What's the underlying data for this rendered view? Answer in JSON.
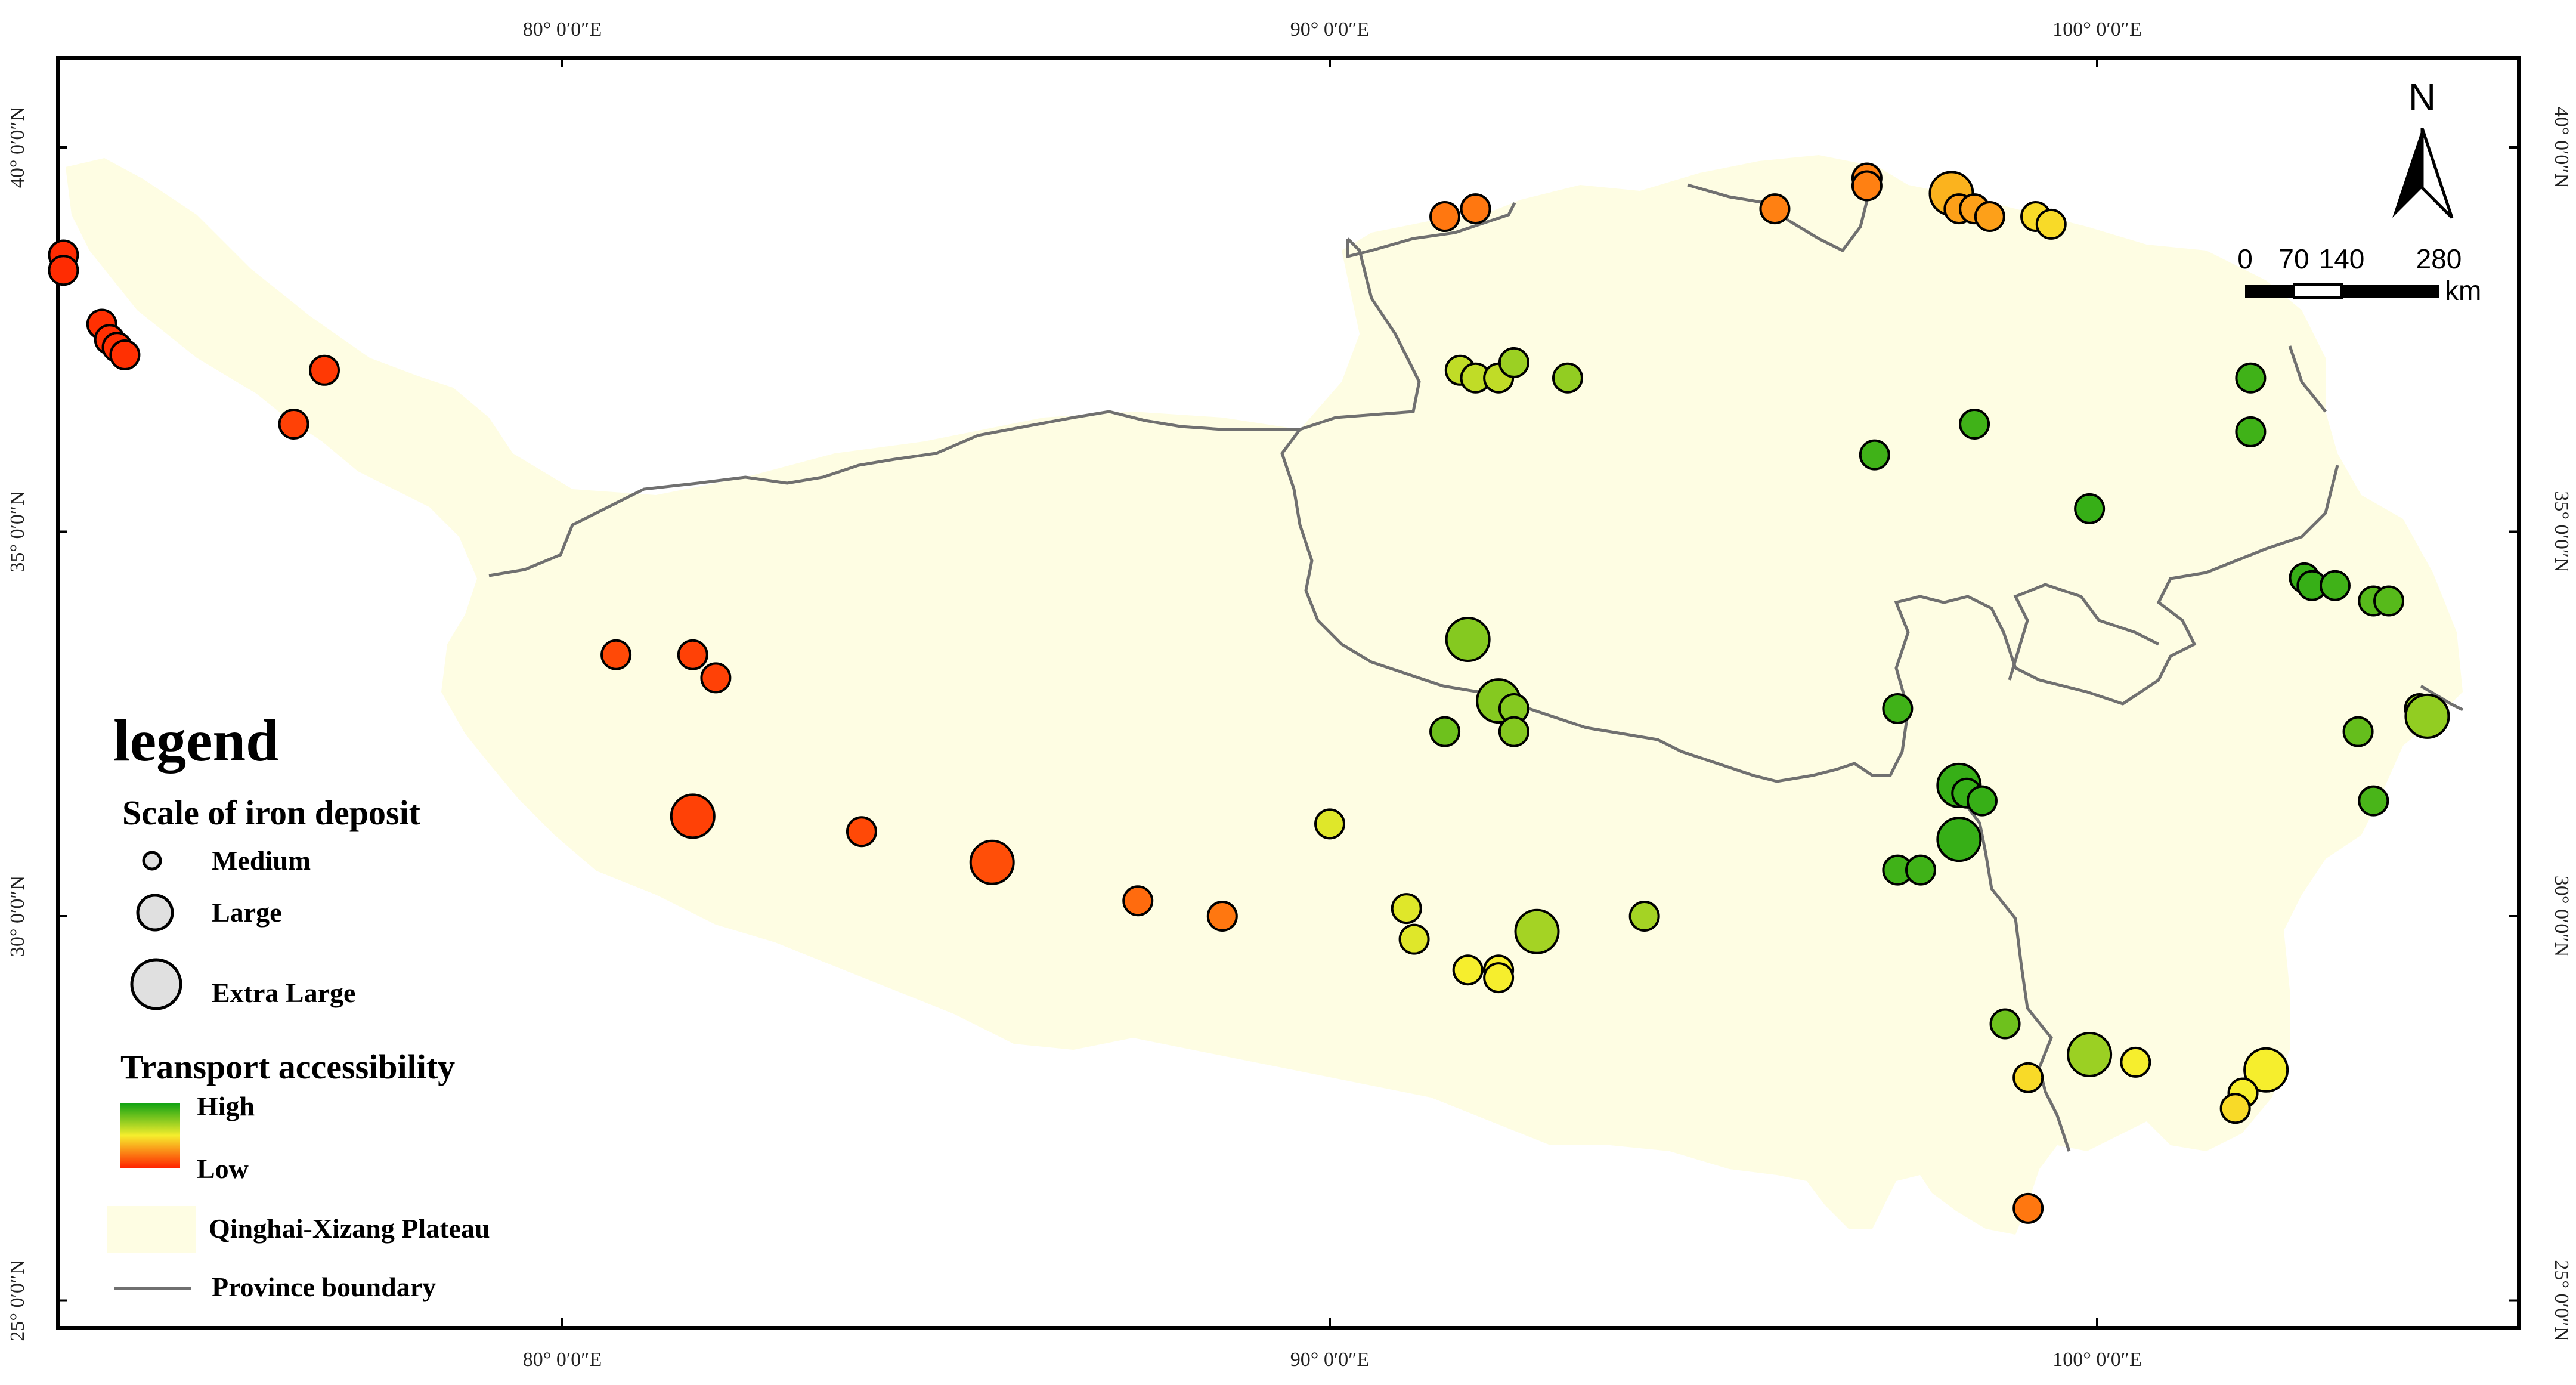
{
  "map": {
    "lon_ticks": [
      "80° 0′0″E",
      "90° 0′0″E",
      "100° 0′0″E"
    ],
    "lat_ticks": [
      "40° 0′0″N",
      "35° 0′0″N",
      "30° 0′0″N",
      "25° 0′0″N"
    ],
    "north_label": "N",
    "scale_bar": {
      "labels": [
        "0",
        "70",
        "140",
        "280"
      ],
      "unit": "km"
    },
    "colors": {
      "plateau": "#fefde3",
      "boundary": "#707070",
      "frame": "#000000",
      "high": "#13a313",
      "mid": "#f6ee2d",
      "low": "#ff2400"
    }
  },
  "legend": {
    "title": "legend",
    "scale_title": "Scale of iron deposit",
    "sizes": [
      "Medium",
      "Large",
      "Extra Large"
    ],
    "transport_title": "Transport accessibility",
    "high_label": "High",
    "low_label": "Low",
    "plateau_label": "Qinghai-Xizang Plateau",
    "boundary_label": "Province boundary"
  },
  "deposits": [
    {
      "lon": 73.5,
      "lat": 38.6,
      "size": "Large",
      "access": 0.02
    },
    {
      "lon": 73.5,
      "lat": 38.4,
      "size": "Large",
      "access": 0.02
    },
    {
      "lon": 74.0,
      "lat": 37.7,
      "size": "Large",
      "access": 0.03
    },
    {
      "lon": 74.1,
      "lat": 37.5,
      "size": "Large",
      "access": 0.03
    },
    {
      "lon": 74.2,
      "lat": 37.4,
      "size": "Large",
      "access": 0.03
    },
    {
      "lon": 74.3,
      "lat": 37.3,
      "size": "Large",
      "access": 0.03
    },
    {
      "lon": 76.9,
      "lat": 37.1,
      "size": "Large",
      "access": 0.05
    },
    {
      "lon": 76.5,
      "lat": 36.4,
      "size": "Large",
      "access": 0.07
    },
    {
      "lon": 80.7,
      "lat": 33.4,
      "size": "Large",
      "access": 0.09
    },
    {
      "lon": 81.7,
      "lat": 33.4,
      "size": "Large",
      "access": 0.07
    },
    {
      "lon": 82.0,
      "lat": 33.1,
      "size": "Large",
      "access": 0.07
    },
    {
      "lon": 81.7,
      "lat": 31.3,
      "size": "Extra Large",
      "access": 0.07
    },
    {
      "lon": 83.9,
      "lat": 31.1,
      "size": "Large",
      "access": 0.09
    },
    {
      "lon": 85.6,
      "lat": 30.7,
      "size": "Extra Large",
      "access": 0.1
    },
    {
      "lon": 87.5,
      "lat": 30.2,
      "size": "Large",
      "access": 0.17
    },
    {
      "lon": 88.6,
      "lat": 30.0,
      "size": "Large",
      "access": 0.2
    },
    {
      "lon": 91.5,
      "lat": 39.1,
      "size": "Large",
      "access": 0.2
    },
    {
      "lon": 91.9,
      "lat": 39.2,
      "size": "Large",
      "access": 0.2
    },
    {
      "lon": 95.8,
      "lat": 39.2,
      "size": "Large",
      "access": 0.22
    },
    {
      "lon": 97.0,
      "lat": 39.6,
      "size": "Large",
      "access": 0.22
    },
    {
      "lon": 97.0,
      "lat": 39.5,
      "size": "Large",
      "access": 0.22
    },
    {
      "lon": 98.1,
      "lat": 39.4,
      "size": "Extra Large",
      "access": 0.35
    },
    {
      "lon": 98.2,
      "lat": 39.2,
      "size": "Large",
      "access": 0.3
    },
    {
      "lon": 98.4,
      "lat": 39.2,
      "size": "Large",
      "access": 0.3
    },
    {
      "lon": 98.6,
      "lat": 39.1,
      "size": "Large",
      "access": 0.3
    },
    {
      "lon": 99.2,
      "lat": 39.1,
      "size": "Large",
      "access": 0.45
    },
    {
      "lon": 99.4,
      "lat": 39.0,
      "size": "Large",
      "access": 0.45
    },
    {
      "lon": 91.7,
      "lat": 37.1,
      "size": "Large",
      "access": 0.62
    },
    {
      "lon": 91.9,
      "lat": 37.0,
      "size": "Large",
      "access": 0.62
    },
    {
      "lon": 92.2,
      "lat": 37.0,
      "size": "Large",
      "access": 0.62
    },
    {
      "lon": 92.4,
      "lat": 37.2,
      "size": "Large",
      "access": 0.7
    },
    {
      "lon": 93.1,
      "lat": 37.0,
      "size": "Large",
      "access": 0.72
    },
    {
      "lon": 97.1,
      "lat": 36.0,
      "size": "Large",
      "access": 0.9
    },
    {
      "lon": 98.4,
      "lat": 36.4,
      "size": "Large",
      "access": 0.9
    },
    {
      "lon": 102.0,
      "lat": 37.0,
      "size": "Large",
      "access": 0.9
    },
    {
      "lon": 102.0,
      "lat": 36.3,
      "size": "Large",
      "access": 0.9
    },
    {
      "lon": 99.9,
      "lat": 35.3,
      "size": "Large",
      "access": 0.92
    },
    {
      "lon": 102.7,
      "lat": 34.4,
      "size": "Large",
      "access": 0.92
    },
    {
      "lon": 102.8,
      "lat": 34.3,
      "size": "Large",
      "access": 0.92
    },
    {
      "lon": 103.1,
      "lat": 34.3,
      "size": "Large",
      "access": 0.9
    },
    {
      "lon": 103.6,
      "lat": 34.1,
      "size": "Large",
      "access": 0.85
    },
    {
      "lon": 103.8,
      "lat": 34.1,
      "size": "Large",
      "access": 0.85
    },
    {
      "lon": 91.8,
      "lat": 33.6,
      "size": "Extra Large",
      "access": 0.75
    },
    {
      "lon": 92.2,
      "lat": 32.8,
      "size": "Extra Large",
      "access": 0.75
    },
    {
      "lon": 92.4,
      "lat": 32.7,
      "size": "Large",
      "access": 0.75
    },
    {
      "lon": 92.4,
      "lat": 32.4,
      "size": "Large",
      "access": 0.75
    },
    {
      "lon": 91.5,
      "lat": 32.4,
      "size": "Large",
      "access": 0.8
    },
    {
      "lon": 97.4,
      "lat": 32.7,
      "size": "Large",
      "access": 0.9
    },
    {
      "lon": 98.2,
      "lat": 31.7,
      "size": "Extra Large",
      "access": 0.92
    },
    {
      "lon": 98.3,
      "lat": 31.6,
      "size": "Large",
      "access": 0.92
    },
    {
      "lon": 98.5,
      "lat": 31.5,
      "size": "Large",
      "access": 0.92
    },
    {
      "lon": 98.2,
      "lat": 31.0,
      "size": "Extra Large",
      "access": 0.92
    },
    {
      "lon": 97.4,
      "lat": 30.6,
      "size": "Large",
      "access": 0.9
    },
    {
      "lon": 97.7,
      "lat": 30.6,
      "size": "Large",
      "access": 0.9
    },
    {
      "lon": 104.2,
      "lat": 32.7,
      "size": "Large",
      "access": 0.72
    },
    {
      "lon": 104.3,
      "lat": 32.6,
      "size": "Extra Large",
      "access": 0.72
    },
    {
      "lon": 103.4,
      "lat": 32.4,
      "size": "Large",
      "access": 0.82
    },
    {
      "lon": 103.6,
      "lat": 31.5,
      "size": "Large",
      "access": 0.88
    },
    {
      "lon": 90.0,
      "lat": 31.2,
      "size": "Large",
      "access": 0.55
    },
    {
      "lon": 91.0,
      "lat": 30.1,
      "size": "Large",
      "access": 0.55
    },
    {
      "lon": 91.1,
      "lat": 29.7,
      "size": "Large",
      "access": 0.55
    },
    {
      "lon": 92.7,
      "lat": 29.8,
      "size": "Extra Large",
      "access": 0.68
    },
    {
      "lon": 94.1,
      "lat": 30.0,
      "size": "Large",
      "access": 0.68
    },
    {
      "lon": 91.8,
      "lat": 29.3,
      "size": "Large",
      "access": 0.5
    },
    {
      "lon": 92.2,
      "lat": 29.3,
      "size": "Large",
      "access": 0.5
    },
    {
      "lon": 92.2,
      "lat": 29.2,
      "size": "Large",
      "access": 0.5
    },
    {
      "lon": 98.8,
      "lat": 28.6,
      "size": "Large",
      "access": 0.8
    },
    {
      "lon": 99.9,
      "lat": 28.2,
      "size": "Extra Large",
      "access": 0.7
    },
    {
      "lon": 100.5,
      "lat": 28.1,
      "size": "Large",
      "access": 0.5
    },
    {
      "lon": 99.1,
      "lat": 27.9,
      "size": "Large",
      "access": 0.45
    },
    {
      "lon": 102.2,
      "lat": 28.0,
      "size": "Extra Large",
      "access": 0.5
    },
    {
      "lon": 101.9,
      "lat": 27.7,
      "size": "Large",
      "access": 0.5
    },
    {
      "lon": 101.8,
      "lat": 27.5,
      "size": "Large",
      "access": 0.45
    },
    {
      "lon": 99.1,
      "lat": 26.2,
      "size": "Large",
      "access": 0.2
    }
  ]
}
